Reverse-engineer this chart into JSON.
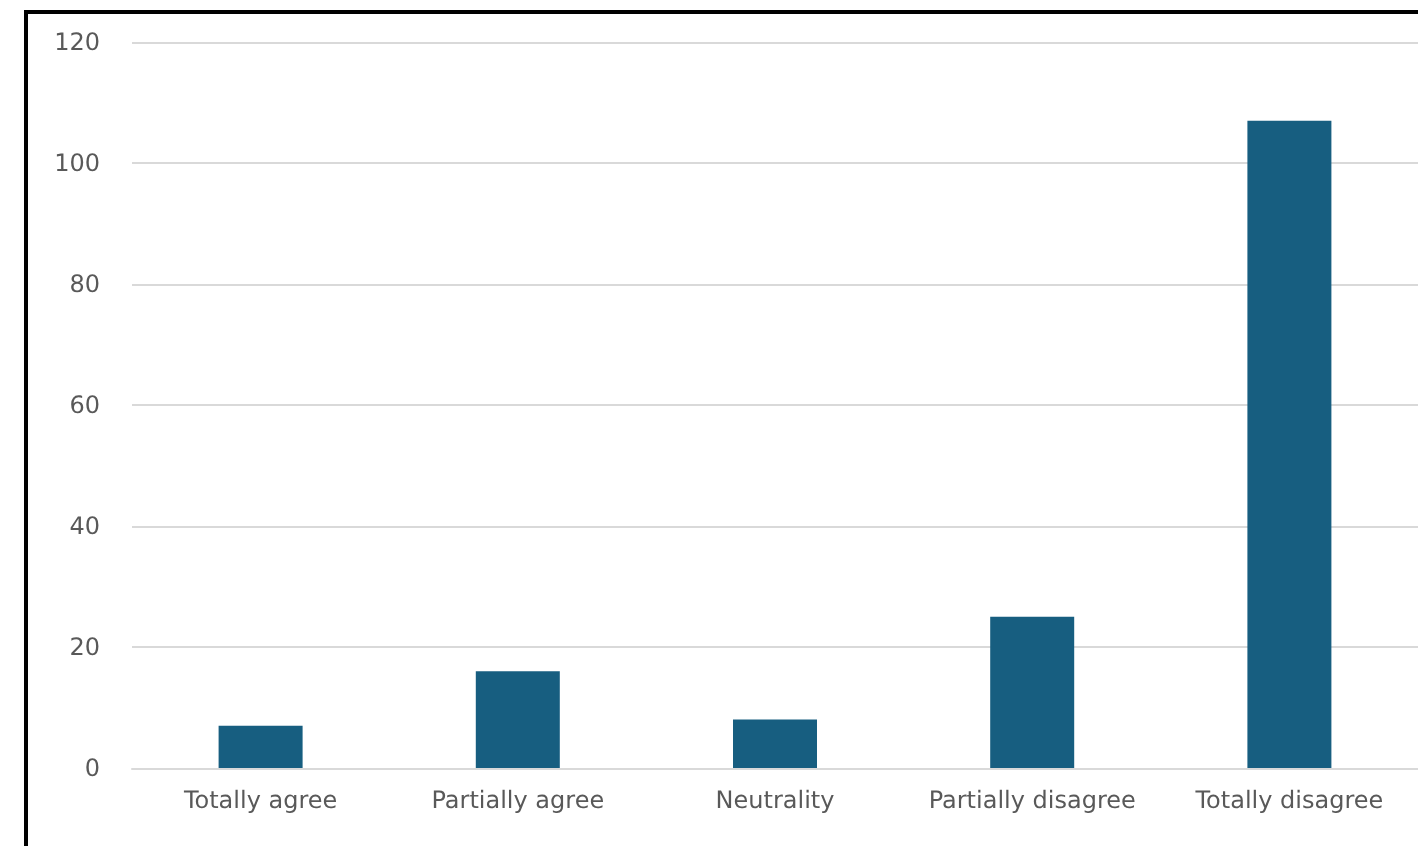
{
  "chart_data": {
    "type": "bar",
    "categories": [
      "Totally agree",
      "Partially agree",
      "Neutrality",
      "Partially disagree",
      "Totally disagree"
    ],
    "values": [
      7,
      16,
      8,
      25,
      107
    ],
    "color": "#175e80",
    "ylim": [
      0,
      120
    ],
    "yticks": [
      0,
      20,
      40,
      60,
      80,
      100,
      120
    ],
    "grid": "y"
  }
}
